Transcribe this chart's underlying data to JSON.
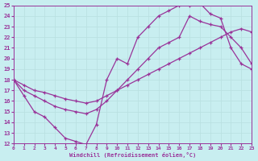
{
  "xlabel": "Windchill (Refroidissement éolien,°C)",
  "bg_color": "#c8eef0",
  "line_color": "#993399",
  "grid_color": "#b8dfe0",
  "xlim": [
    0,
    23
  ],
  "ylim": [
    12,
    25
  ],
  "xticks": [
    0,
    1,
    2,
    3,
    4,
    5,
    6,
    7,
    8,
    9,
    10,
    11,
    12,
    13,
    14,
    15,
    16,
    17,
    18,
    19,
    20,
    21,
    22,
    23
  ],
  "yticks": [
    12,
    13,
    14,
    15,
    16,
    17,
    18,
    19,
    20,
    21,
    22,
    23,
    24,
    25
  ],
  "line1_x": [
    0,
    1,
    2,
    3,
    4,
    5,
    6,
    7,
    8,
    9,
    10,
    11,
    12,
    13,
    14,
    15,
    16,
    17,
    18,
    19,
    20,
    21,
    22,
    23
  ],
  "line1_y": [
    18.0,
    16.5,
    15.0,
    14.5,
    13.5,
    12.5,
    12.2,
    11.9,
    13.8,
    18.0,
    20.0,
    19.5,
    22.0,
    23.0,
    24.0,
    24.5,
    25.0,
    25.0,
    25.2,
    24.2,
    23.8,
    21.0,
    19.5,
    19.0
  ],
  "line2_x": [
    0,
    1,
    2,
    3,
    4,
    5,
    6,
    7,
    8,
    9,
    10,
    11,
    12,
    13,
    14,
    15,
    16,
    17,
    18,
    19,
    20,
    21,
    22,
    23
  ],
  "line2_y": [
    18.0,
    17.0,
    16.5,
    16.0,
    15.5,
    15.2,
    15.0,
    14.8,
    15.2,
    16.0,
    17.0,
    18.0,
    19.0,
    20.0,
    21.0,
    21.5,
    22.0,
    24.0,
    23.5,
    23.2,
    23.0,
    22.0,
    21.0,
    19.5
  ],
  "line3_x": [
    0,
    1,
    2,
    3,
    4,
    5,
    6,
    7,
    8,
    9,
    10,
    11,
    12,
    13,
    14,
    15,
    16,
    17,
    18,
    19,
    20,
    21,
    22,
    23
  ],
  "line3_y": [
    18.0,
    17.5,
    17.0,
    16.8,
    16.5,
    16.2,
    16.0,
    15.8,
    16.0,
    16.5,
    17.0,
    17.5,
    18.0,
    18.5,
    19.0,
    19.5,
    20.0,
    20.5,
    21.0,
    21.5,
    22.0,
    22.5,
    22.8,
    22.5
  ]
}
